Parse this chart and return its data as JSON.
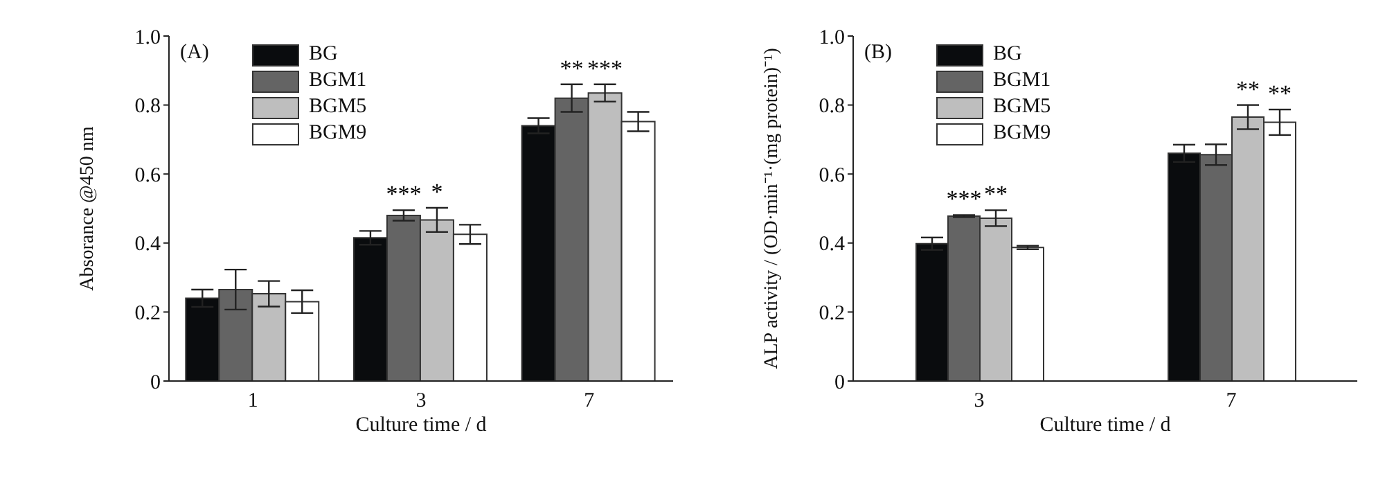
{
  "chart_data": [
    {
      "type": "bar",
      "title": "(A)",
      "categories": [
        "1",
        "3",
        "7"
      ],
      "xlabel": "Culture time / d",
      "ylabel": "Absorance @450 nm",
      "ylim": [
        0,
        1
      ],
      "yticks": [
        0,
        0.2,
        0.4,
        0.6,
        0.8,
        {
          "value": 1,
          "label": "1.0"
        }
      ],
      "legend": "top left",
      "series": [
        {
          "name": "BG",
          "color": "#0a0c0e",
          "values": [
            0.24,
            0.415,
            0.74
          ],
          "errors": [
            0.025,
            0.02,
            0.022
          ]
        },
        {
          "name": "BGM1",
          "color": "#646464",
          "values": [
            0.265,
            0.48,
            0.82
          ],
          "errors": [
            0.058,
            0.015,
            0.04
          ],
          "value_labels": [
            null,
            "***",
            "**"
          ]
        },
        {
          "name": "BGM5",
          "color": "#bebebe",
          "values": [
            0.253,
            0.467,
            0.835
          ],
          "errors": [
            0.037,
            0.035,
            0.025
          ],
          "value_labels": [
            null,
            "*",
            "***"
          ]
        },
        {
          "name": "BGM9",
          "color": "#ffffff",
          "values": [
            0.23,
            0.425,
            0.752
          ],
          "errors": [
            0.033,
            0.028,
            0.028
          ]
        }
      ]
    },
    {
      "type": "bar",
      "title": "(B)",
      "categories": [
        "3",
        "7"
      ],
      "xlabel": "Culture time / d",
      "ylabel": "ALP activity / (OD·min⁻¹·(mg protein)⁻¹)",
      "ylim": [
        0,
        1
      ],
      "yticks": [
        0,
        0.2,
        0.4,
        0.6,
        0.8,
        {
          "value": 1,
          "label": "1.0"
        }
      ],
      "legend": "top left",
      "series": [
        {
          "name": "BG",
          "color": "#0a0c0e",
          "values": [
            0.398,
            0.66
          ],
          "errors": [
            0.018,
            0.025
          ]
        },
        {
          "name": "BGM1",
          "color": "#646464",
          "values": [
            0.478,
            0.656
          ],
          "errors": [
            0.003,
            0.03
          ],
          "value_labels": [
            "***",
            null
          ]
        },
        {
          "name": "BGM5",
          "color": "#bebebe",
          "values": [
            0.472,
            0.765
          ],
          "errors": [
            0.023,
            0.035
          ],
          "value_labels": [
            "**",
            "**"
          ]
        },
        {
          "name": "BGM9",
          "color": "#ffffff",
          "values": [
            0.387,
            0.75
          ],
          "errors": [
            0.005,
            0.037
          ],
          "value_labels": [
            null,
            "**"
          ]
        }
      ]
    }
  ]
}
